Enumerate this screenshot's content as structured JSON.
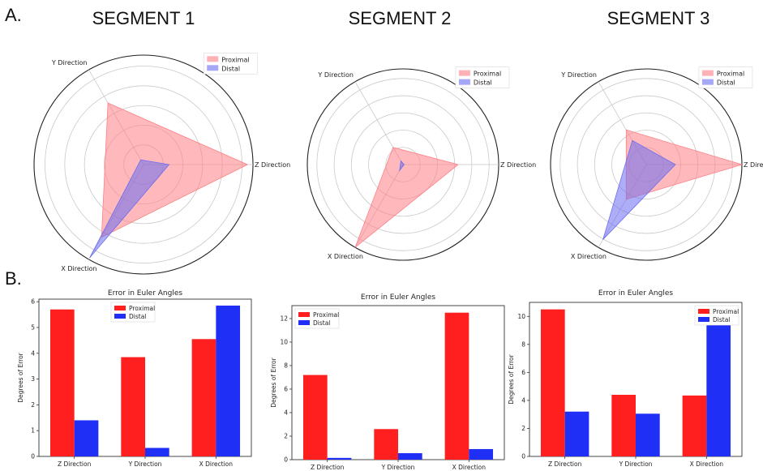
{
  "labels": {
    "panel_a": "A.",
    "panel_b": "B."
  },
  "colors": {
    "proximal_fill": "#ff7f85",
    "distal_fill": "#6a6cf0",
    "proximal_bar": "#ff1f1f",
    "distal_bar": "#1f2ff5",
    "grid": "#c9c9c9"
  },
  "chart_data": [
    {
      "type": "radar",
      "title": "SEGMENT 1",
      "axes": [
        "Z Direction",
        "Y Direction",
        "X Direction"
      ],
      "legend": [
        "Proximal",
        "Distal"
      ],
      "legend_placement": "top-right",
      "rmax": 6,
      "series": [
        {
          "name": "Proximal",
          "values": [
            5.7,
            3.9,
            4.6
          ]
        },
        {
          "name": "Distal",
          "values": [
            1.4,
            0.3,
            5.9
          ]
        }
      ]
    },
    {
      "type": "radar",
      "title": "SEGMENT 2",
      "axes": [
        "Z Direction",
        "Y Direction",
        "X Direction"
      ],
      "legend": [
        "Proximal",
        "Distal"
      ],
      "legend_placement": "top-right",
      "rmax": 12.5,
      "series": [
        {
          "name": "Proximal",
          "values": [
            7.2,
            2.6,
            12.5
          ]
        },
        {
          "name": "Distal",
          "values": [
            0.15,
            0.55,
            0.9
          ]
        }
      ]
    },
    {
      "type": "radar",
      "title": "SEGMENT 3",
      "axes": [
        "Z Direction",
        "Y Direction",
        "X Direction"
      ],
      "legend": [
        "Proximal",
        "Distal"
      ],
      "legend_placement": "top-right",
      "rmax": 10.5,
      "series": [
        {
          "name": "Proximal",
          "values": [
            10.5,
            4.4,
            4.4
          ]
        },
        {
          "name": "Distal",
          "values": [
            3.2,
            3.05,
            9.5
          ]
        }
      ]
    },
    {
      "type": "bar",
      "title": "Error in Euler Angles",
      "ylabel": "Degrees of Error",
      "categories": [
        "Z Direction",
        "Y Direction",
        "X Direction"
      ],
      "ylim": [
        0,
        6.1
      ],
      "yticks": [
        0,
        1,
        2,
        3,
        4,
        5,
        6
      ],
      "legend_placement": "top-center",
      "series": [
        {
          "name": "Proximal",
          "values": [
            5.7,
            3.85,
            4.55
          ]
        },
        {
          "name": "Distal",
          "values": [
            1.4,
            0.33,
            5.85
          ]
        }
      ]
    },
    {
      "type": "bar",
      "title": "Error in Euler Angles",
      "ylabel": "Degrees of Error",
      "categories": [
        "Z Direction",
        "Y Direction",
        "X Direction"
      ],
      "ylim": [
        0,
        13.1
      ],
      "yticks": [
        0,
        2,
        4,
        6,
        8,
        10,
        12
      ],
      "legend_placement": "top-left",
      "series": [
        {
          "name": "Proximal",
          "values": [
            7.2,
            2.6,
            12.5
          ]
        },
        {
          "name": "Distal",
          "values": [
            0.15,
            0.55,
            0.9
          ]
        }
      ]
    },
    {
      "type": "bar",
      "title": "Error in Euler Angles",
      "ylabel": "Degrees of Error",
      "categories": [
        "Z Direction",
        "Y Direction",
        "X Direction"
      ],
      "ylim": [
        0,
        11.0
      ],
      "yticks": [
        0,
        2,
        4,
        6,
        8,
        10
      ],
      "legend_placement": "top-right",
      "series": [
        {
          "name": "Proximal",
          "values": [
            10.5,
            4.4,
            4.35
          ]
        },
        {
          "name": "Distal",
          "values": [
            3.2,
            3.05,
            9.45
          ]
        }
      ]
    }
  ]
}
